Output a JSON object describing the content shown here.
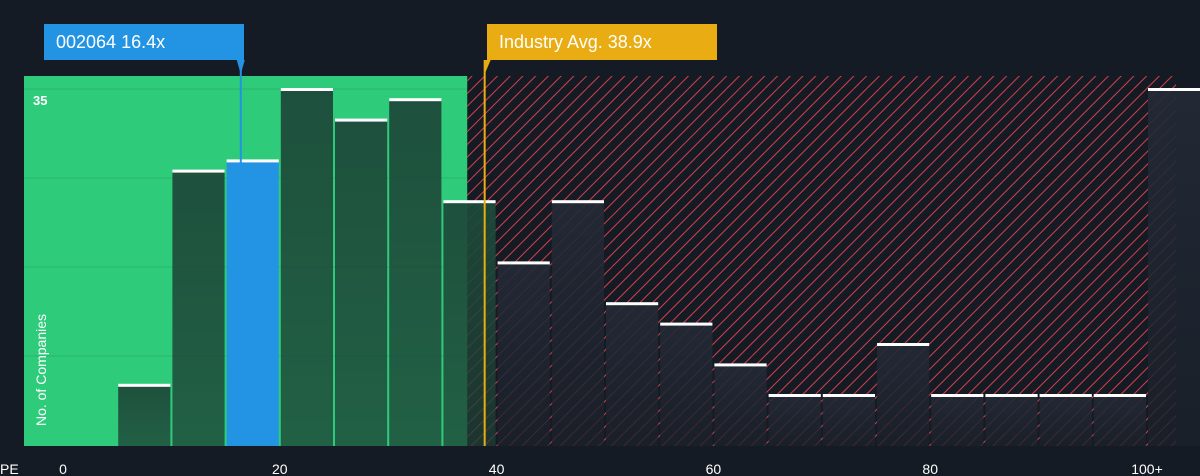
{
  "colors": {
    "background": "#151b24",
    "fair_zone": "#2ecc7a",
    "expensive_hatch": "#d6404a",
    "company_bar": "#2394e4",
    "industry_line": "#e9ac12",
    "bar_dark": "#1e4a3a",
    "bar_cap": "#ffffff"
  },
  "company": {
    "label": "002064 16.4x",
    "pe": 16.4
  },
  "industry": {
    "label": "Industry Avg. 38.9x",
    "pe": 38.9
  },
  "chart_data": {
    "type": "bar",
    "xlabel": "PE",
    "ylabel": "No. of Companies",
    "x_ticks": [
      {
        "value": 0,
        "label": "0"
      },
      {
        "value": 20,
        "label": "20"
      },
      {
        "value": 40,
        "label": "40"
      },
      {
        "value": 60,
        "label": "60"
      },
      {
        "value": 80,
        "label": "80"
      },
      {
        "value": 100,
        "label": "100+"
      }
    ],
    "y_ticks": [
      {
        "value": 35,
        "label": "35"
      }
    ],
    "xlim": [
      -0.5,
      102
    ],
    "ylim": [
      0,
      35.5
    ],
    "fair_value_upper_pe": 37.3,
    "bins": [
      {
        "x0": 5,
        "x1": 10,
        "count": 6
      },
      {
        "x0": 10,
        "x1": 15,
        "count": 27
      },
      {
        "x0": 15,
        "x1": 20,
        "count": 28,
        "highlight": true
      },
      {
        "x0": 20,
        "x1": 25,
        "count": 35
      },
      {
        "x0": 25,
        "x1": 30,
        "count": 32
      },
      {
        "x0": 30,
        "x1": 35,
        "count": 34
      },
      {
        "x0": 35,
        "x1": 40,
        "count": 24
      },
      {
        "x0": 40,
        "x1": 45,
        "count": 18
      },
      {
        "x0": 45,
        "x1": 50,
        "count": 24
      },
      {
        "x0": 50,
        "x1": 55,
        "count": 14
      },
      {
        "x0": 55,
        "x1": 60,
        "count": 12
      },
      {
        "x0": 60,
        "x1": 65,
        "count": 8
      },
      {
        "x0": 65,
        "x1": 70,
        "count": 5
      },
      {
        "x0": 70,
        "x1": 75,
        "count": 5
      },
      {
        "x0": 75,
        "x1": 80,
        "count": 10
      },
      {
        "x0": 80,
        "x1": 85,
        "count": 5
      },
      {
        "x0": 85,
        "x1": 90,
        "count": 5
      },
      {
        "x0": 90,
        "x1": 95,
        "count": 5
      },
      {
        "x0": 95,
        "x1": 100,
        "count": 5
      },
      {
        "x0": 100,
        "x1": 105,
        "count": 35
      }
    ]
  }
}
